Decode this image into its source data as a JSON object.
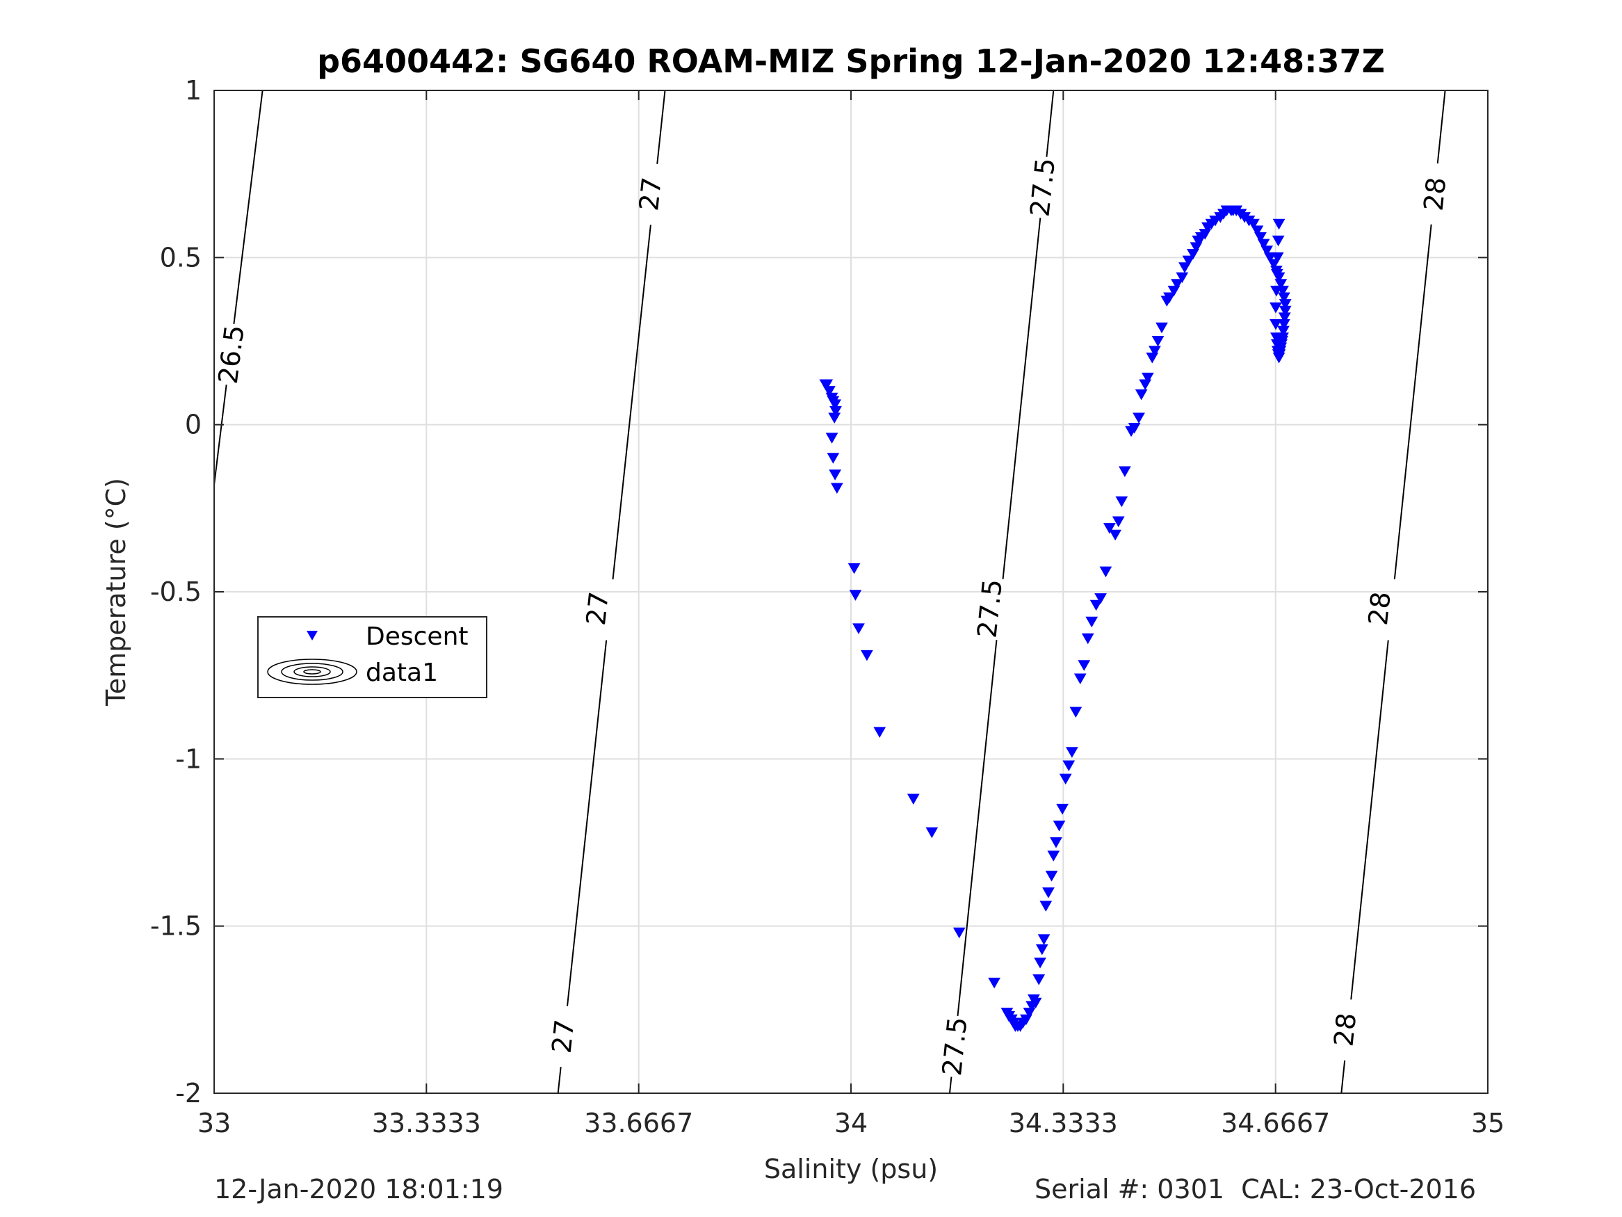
{
  "chart_data": {
    "type": "scatter",
    "title": "p6400442: SG640 ROAM-MIZ Spring 12-Jan-2020 12:48:37Z",
    "xlabel": "Salinity (psu)",
    "ylabel": "Temperature (°C)",
    "xlim": [
      33,
      35
    ],
    "ylim": [
      -2,
      1
    ],
    "x_ticks": [
      "33",
      "33.3333",
      "33.6667",
      "34",
      "34.3333",
      "34.6667",
      "35"
    ],
    "x_tick_values": [
      33,
      33.3333,
      33.6667,
      34,
      34.3333,
      34.6667,
      35
    ],
    "y_ticks": [
      "1",
      "0.5",
      "0",
      "-0.5",
      "-1",
      "-1.5",
      "-2"
    ],
    "y_tick_values": [
      1,
      0.5,
      0,
      -0.5,
      -1,
      -1.5,
      -2
    ],
    "grid": true,
    "legend_position": "middle-left",
    "legend": [
      {
        "label": "Descent",
        "marker": "triangle-down",
        "color": "#0000ff"
      },
      {
        "label": "data1",
        "marker": "contour-ellipses",
        "color": "#000000"
      }
    ],
    "contours": [
      {
        "label": "26.5",
        "points": [
          [
            33.0,
            -0.18
          ],
          [
            33.076,
            1.0
          ]
        ],
        "label_positions": [
          [
            33.027,
            0.21
          ]
        ]
      },
      {
        "label": "27",
        "points": [
          [
            33.54,
            -2.0
          ],
          [
            33.708,
            1.0
          ]
        ],
        "label_positions": [
          [
            33.548,
            -1.83
          ],
          [
            33.602,
            -0.55
          ],
          [
            33.685,
            0.69
          ]
        ]
      },
      {
        "label": "27.5",
        "points": [
          [
            34.155,
            -2.0
          ],
          [
            34.318,
            1.0
          ]
        ],
        "label_positions": [
          [
            34.163,
            -1.86
          ],
          [
            34.218,
            -0.55
          ],
          [
            34.301,
            0.71
          ]
        ]
      },
      {
        "label": "28",
        "points": [
          [
            34.77,
            -2.0
          ],
          [
            34.933,
            1.0
          ]
        ],
        "label_positions": [
          [
            34.776,
            -1.81
          ],
          [
            34.83,
            -0.55
          ],
          [
            34.917,
            0.69
          ]
        ]
      }
    ],
    "series": [
      {
        "name": "Descent",
        "marker": "triangle-down",
        "color": "#0000ff",
        "x": [
          33.96,
          33.962,
          33.966,
          33.97,
          33.972,
          33.975,
          33.976,
          33.974,
          33.97,
          33.972,
          33.975,
          33.978,
          34.005,
          34.007,
          34.012,
          34.025,
          34.045,
          34.098,
          34.127,
          34.17,
          34.225,
          34.245,
          34.248,
          34.252,
          34.255,
          34.258,
          34.262,
          34.266,
          34.27,
          34.275,
          34.28,
          34.284,
          34.287,
          34.29,
          34.295,
          34.297,
          34.3,
          34.303,
          34.306,
          34.31,
          34.315,
          34.318,
          34.322,
          34.327,
          34.332,
          34.337,
          34.342,
          34.347,
          34.353,
          34.36,
          34.366,
          34.372,
          34.378,
          34.385,
          34.392,
          34.4,
          34.406,
          34.415,
          34.42,
          34.425,
          34.43,
          34.44,
          34.445,
          34.452,
          34.456,
          34.462,
          34.466,
          34.473,
          34.477,
          34.482,
          34.488,
          34.496,
          34.5,
          34.507,
          34.512,
          34.52,
          34.524,
          34.53,
          34.537,
          34.542,
          34.545,
          34.55,
          34.556,
          34.56,
          34.566,
          34.572,
          34.58,
          34.585,
          34.59,
          34.597,
          34.6,
          34.605,
          34.612,
          34.618,
          34.625,
          34.632,
          34.638,
          34.643,
          34.648,
          34.653,
          34.658,
          34.664,
          34.668,
          34.672,
          34.675,
          34.678,
          34.68,
          34.682,
          34.682,
          34.681,
          34.68,
          34.679,
          34.678,
          34.677,
          34.676,
          34.675,
          34.674,
          34.673,
          34.672,
          34.671,
          34.67,
          34.669,
          34.668,
          34.667,
          34.667,
          34.668,
          34.669,
          34.67,
          34.671,
          34.672
        ],
        "y": [
          0.12,
          0.12,
          0.1,
          0.08,
          0.07,
          0.06,
          0.04,
          0.02,
          -0.04,
          -0.1,
          -0.15,
          -0.19,
          -0.43,
          -0.51,
          -0.61,
          -0.69,
          -0.92,
          -1.12,
          -1.22,
          -1.52,
          -1.67,
          -1.76,
          -1.77,
          -1.78,
          -1.79,
          -1.8,
          -1.8,
          -1.8,
          -1.79,
          -1.78,
          -1.76,
          -1.74,
          -1.72,
          -1.73,
          -1.66,
          -1.61,
          -1.57,
          -1.54,
          -1.44,
          -1.4,
          -1.35,
          -1.29,
          -1.25,
          -1.2,
          -1.15,
          -1.06,
          -1.02,
          -0.98,
          -0.86,
          -0.76,
          -0.72,
          -0.64,
          -0.59,
          -0.54,
          -0.52,
          -0.44,
          -0.31,
          -0.33,
          -0.29,
          -0.23,
          -0.14,
          -0.02,
          -0.01,
          0.02,
          0.09,
          0.12,
          0.14,
          0.2,
          0.22,
          0.25,
          0.29,
          0.37,
          0.38,
          0.4,
          0.42,
          0.44,
          0.47,
          0.49,
          0.51,
          0.53,
          0.55,
          0.56,
          0.57,
          0.59,
          0.6,
          0.61,
          0.62,
          0.63,
          0.64,
          0.64,
          0.64,
          0.64,
          0.63,
          0.62,
          0.61,
          0.6,
          0.58,
          0.56,
          0.54,
          0.52,
          0.5,
          0.48,
          0.46,
          0.44,
          0.42,
          0.4,
          0.38,
          0.36,
          0.34,
          0.32,
          0.3,
          0.28,
          0.26,
          0.25,
          0.24,
          0.23,
          0.22,
          0.21,
          0.2,
          0.21,
          0.22,
          0.24,
          0.26,
          0.3,
          0.35,
          0.4,
          0.45,
          0.5,
          0.55,
          0.6
        ]
      }
    ]
  },
  "footer": {
    "left": "12-Jan-2020 18:01:19",
    "right": "Serial #: 0301  CAL: 23-Oct-2016"
  }
}
